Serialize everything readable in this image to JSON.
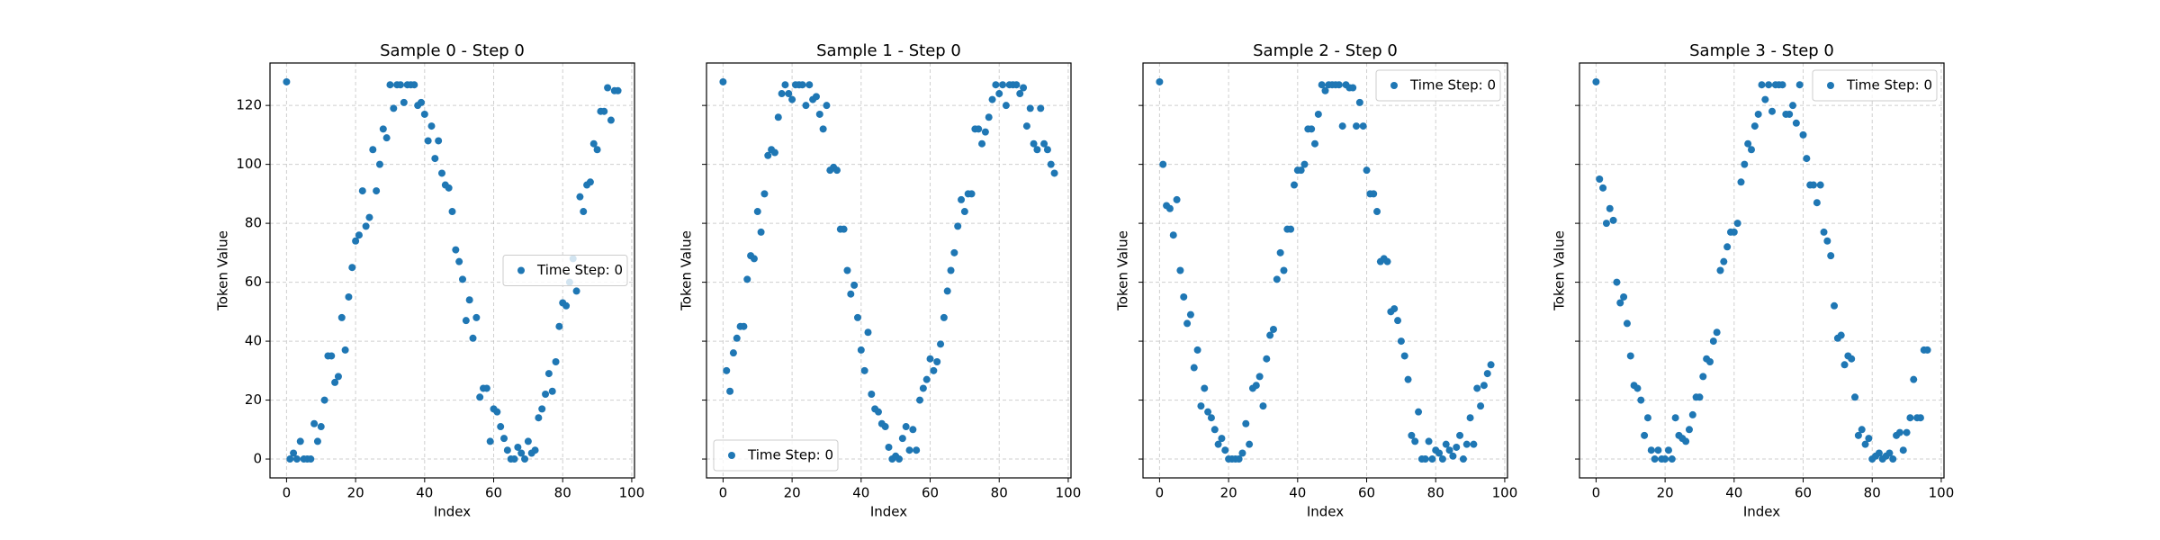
{
  "chart_data": [
    {
      "type": "scatter",
      "title": "Sample 0 - Step 0",
      "xlabel": "Index",
      "ylabel": "Token Value",
      "x": [
        0,
        1,
        2,
        3,
        4,
        5,
        6,
        7,
        8,
        9,
        10,
        11,
        12,
        13,
        14,
        15,
        16,
        17,
        18,
        19,
        20,
        21,
        22,
        23,
        24,
        25,
        26,
        27,
        28,
        29,
        30,
        31,
        32,
        33,
        34,
        35,
        36,
        37,
        38,
        39,
        40,
        41,
        42,
        43,
        44,
        45,
        46,
        47,
        48,
        49,
        50,
        51,
        52,
        53,
        54,
        55,
        56,
        57,
        58,
        59,
        60,
        61,
        62,
        63,
        64,
        65,
        66,
        67,
        68,
        69,
        70,
        71,
        72,
        73,
        74,
        75,
        76,
        77,
        78,
        79,
        80,
        81,
        82,
        83,
        84,
        85,
        86,
        87,
        88,
        89,
        90,
        91,
        92,
        93,
        94,
        95,
        96
      ],
      "series": [
        {
          "name": "Time Step: 0",
          "color": "#1f77b4",
          "values": [
            128,
            0,
            2,
            0,
            6,
            0,
            0,
            0,
            12,
            6,
            11,
            20,
            35,
            35,
            26,
            28,
            48,
            37,
            55,
            65,
            74,
            76,
            91,
            79,
            82,
            105,
            91,
            100,
            112,
            109,
            127,
            119,
            127,
            127,
            121,
            127,
            127,
            127,
            120,
            121,
            117,
            108,
            113,
            102,
            108,
            97,
            93,
            92,
            84,
            71,
            67,
            61,
            47,
            54,
            41,
            48,
            21,
            24,
            24,
            6,
            17,
            16,
            11,
            7,
            3,
            0,
            0,
            4,
            2,
            0,
            6,
            2,
            3,
            14,
            17,
            22,
            29,
            23,
            33,
            45,
            53,
            52,
            60,
            68,
            57,
            89,
            84,
            93,
            94,
            107,
            105,
            118,
            118,
            126,
            115,
            125,
            125
          ]
        }
      ],
      "xlim": [
        -4.8,
        100.8
      ],
      "ylim": [
        -6.4,
        134.4
      ],
      "xticks": [
        0,
        20,
        40,
        60,
        80,
        100
      ],
      "yticks": [
        0,
        20,
        40,
        60,
        80,
        100,
        120
      ],
      "yticklabels": true,
      "grid": true,
      "legend": "center right"
    },
    {
      "type": "scatter",
      "title": "Sample 1 - Step 0",
      "xlabel": "Index",
      "ylabel": "Token Value",
      "x": [
        0,
        1,
        2,
        3,
        4,
        5,
        6,
        7,
        8,
        9,
        10,
        11,
        12,
        13,
        14,
        15,
        16,
        17,
        18,
        19,
        20,
        21,
        22,
        23,
        24,
        25,
        26,
        27,
        28,
        29,
        30,
        31,
        32,
        33,
        34,
        35,
        36,
        37,
        38,
        39,
        40,
        41,
        42,
        43,
        44,
        45,
        46,
        47,
        48,
        49,
        50,
        51,
        52,
        53,
        54,
        55,
        56,
        57,
        58,
        59,
        60,
        61,
        62,
        63,
        64,
        65,
        66,
        67,
        68,
        69,
        70,
        71,
        72,
        73,
        74,
        75,
        76,
        77,
        78,
        79,
        80,
        81,
        82,
        83,
        84,
        85,
        86,
        87,
        88,
        89,
        90,
        91,
        92,
        93,
        94,
        95,
        96
      ],
      "series": [
        {
          "name": "Time Step: 0",
          "color": "#1f77b4",
          "values": [
            128,
            30,
            23,
            36,
            41,
            45,
            45,
            61,
            69,
            68,
            84,
            77,
            90,
            103,
            105,
            104,
            116,
            124,
            127,
            124,
            122,
            127,
            127,
            127,
            120,
            127,
            122,
            123,
            117,
            112,
            120,
            98,
            99,
            98,
            78,
            78,
            64,
            56,
            59,
            48,
            37,
            30,
            43,
            22,
            17,
            16,
            12,
            11,
            4,
            0,
            1,
            0,
            7,
            11,
            3,
            10,
            3,
            20,
            24,
            27,
            34,
            30,
            33,
            39,
            48,
            57,
            64,
            70,
            79,
            88,
            84,
            90,
            90,
            112,
            112,
            107,
            111,
            116,
            122,
            127,
            124,
            127,
            120,
            127,
            127,
            127,
            124,
            126,
            113,
            119,
            107,
            105,
            119,
            107,
            105,
            100,
            97
          ]
        }
      ],
      "xlim": [
        -4.8,
        100.8
      ],
      "ylim": [
        -6.4,
        134.4
      ],
      "xticks": [
        0,
        20,
        40,
        60,
        80,
        100
      ],
      "yticks": [
        0,
        20,
        40,
        60,
        80,
        100,
        120
      ],
      "yticklabels": false,
      "grid": true,
      "legend": "lower left"
    },
    {
      "type": "scatter",
      "title": "Sample 2 - Step 0",
      "xlabel": "Index",
      "ylabel": "Token Value",
      "x": [
        0,
        1,
        2,
        3,
        4,
        5,
        6,
        7,
        8,
        9,
        10,
        11,
        12,
        13,
        14,
        15,
        16,
        17,
        18,
        19,
        20,
        21,
        22,
        23,
        24,
        25,
        26,
        27,
        28,
        29,
        30,
        31,
        32,
        33,
        34,
        35,
        36,
        37,
        38,
        39,
        40,
        41,
        42,
        43,
        44,
        45,
        46,
        47,
        48,
        49,
        50,
        51,
        52,
        53,
        54,
        55,
        56,
        57,
        58,
        59,
        60,
        61,
        62,
        63,
        64,
        65,
        66,
        67,
        68,
        69,
        70,
        71,
        72,
        73,
        74,
        75,
        76,
        77,
        78,
        79,
        80,
        81,
        82,
        83,
        84,
        85,
        86,
        87,
        88,
        89,
        90,
        91,
        92,
        93,
        94,
        95,
        96
      ],
      "series": [
        {
          "name": "Time Step: 0",
          "color": "#1f77b4",
          "values": [
            128,
            100,
            86,
            85,
            76,
            88,
            64,
            55,
            46,
            49,
            31,
            37,
            18,
            24,
            16,
            14,
            10,
            5,
            7,
            3,
            0,
            0,
            0,
            0,
            2,
            12,
            5,
            24,
            25,
            28,
            18,
            34,
            42,
            44,
            61,
            70,
            64,
            78,
            78,
            93,
            98,
            98,
            100,
            112,
            112,
            107,
            117,
            127,
            125,
            127,
            127,
            127,
            127,
            113,
            127,
            126,
            126,
            113,
            121,
            113,
            98,
            90,
            90,
            84,
            67,
            68,
            67,
            50,
            51,
            47,
            40,
            35,
            27,
            8,
            6,
            16,
            0,
            0,
            6,
            0,
            3,
            2,
            0,
            5,
            3,
            1,
            4,
            8,
            0,
            5,
            14,
            5,
            24,
            18,
            25,
            29,
            32
          ]
        }
      ],
      "xlim": [
        -4.8,
        100.8
      ],
      "ylim": [
        -6.4,
        134.4
      ],
      "xticks": [
        0,
        20,
        40,
        60,
        80,
        100
      ],
      "yticks": [
        0,
        20,
        40,
        60,
        80,
        100,
        120
      ],
      "yticklabels": false,
      "grid": true,
      "legend": "upper right"
    },
    {
      "type": "scatter",
      "title": "Sample 3 - Step 0",
      "xlabel": "Index",
      "ylabel": "Token Value",
      "x": [
        0,
        1,
        2,
        3,
        4,
        5,
        6,
        7,
        8,
        9,
        10,
        11,
        12,
        13,
        14,
        15,
        16,
        17,
        18,
        19,
        20,
        21,
        22,
        23,
        24,
        25,
        26,
        27,
        28,
        29,
        30,
        31,
        32,
        33,
        34,
        35,
        36,
        37,
        38,
        39,
        40,
        41,
        42,
        43,
        44,
        45,
        46,
        47,
        48,
        49,
        50,
        51,
        52,
        53,
        54,
        55,
        56,
        57,
        58,
        59,
        60,
        61,
        62,
        63,
        64,
        65,
        66,
        67,
        68,
        69,
        70,
        71,
        72,
        73,
        74,
        75,
        76,
        77,
        78,
        79,
        80,
        81,
        82,
        83,
        84,
        85,
        86,
        87,
        88,
        89,
        90,
        91,
        92,
        93,
        94,
        95,
        96
      ],
      "series": [
        {
          "name": "Time Step: 0",
          "color": "#1f77b4",
          "values": [
            128,
            95,
            92,
            80,
            85,
            81,
            60,
            53,
            55,
            46,
            35,
            25,
            24,
            20,
            8,
            14,
            3,
            0,
            3,
            0,
            0,
            3,
            0,
            14,
            8,
            7,
            6,
            10,
            15,
            21,
            21,
            28,
            34,
            33,
            40,
            43,
            64,
            67,
            72,
            77,
            77,
            80,
            94,
            100,
            107,
            105,
            113,
            117,
            127,
            122,
            127,
            118,
            127,
            127,
            127,
            117,
            117,
            120,
            114,
            127,
            110,
            102,
            93,
            93,
            87,
            93,
            77,
            74,
            69,
            52,
            41,
            42,
            32,
            35,
            34,
            21,
            8,
            10,
            5,
            7,
            0,
            1,
            2,
            0,
            1,
            2,
            0,
            8,
            9,
            3,
            9,
            14,
            27,
            14,
            14,
            37,
            37
          ]
        }
      ],
      "xlim": [
        -4.8,
        100.8
      ],
      "ylim": [
        -6.4,
        134.4
      ],
      "xticks": [
        0,
        20,
        40,
        60,
        80,
        100
      ],
      "yticks": [
        0,
        20,
        40,
        60,
        80,
        100,
        120
      ],
      "yticklabels": false,
      "grid": true,
      "legend": "upper right"
    }
  ]
}
